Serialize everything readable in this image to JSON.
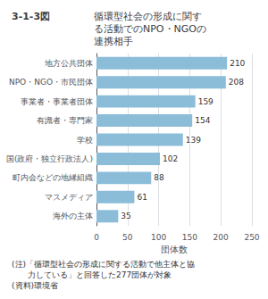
{
  "chart_data": {
    "type": "bar",
    "orientation": "horizontal",
    "title": "3-1-3図",
    "subtitle": "循環型社会の形成に関す\nる活動でのNPO・NGOの\n連携相手",
    "categories": [
      "海外の主体",
      "マスメディア",
      "町内会などの地縁組織",
      "国(政府・独立行政法人)",
      "学校",
      "有識者・専門家",
      "事業者・事業者団体",
      "NPO・NGO・市民団体",
      "地方公共団体"
    ],
    "values": [
      35,
      61,
      88,
      102,
      139,
      154,
      159,
      208,
      210
    ],
    "color": "#8bbdd9",
    "xlabel": "団体数",
    "xlim": [
      0,
      250
    ],
    "xticks": [
      0,
      50,
      100,
      150,
      200,
      250
    ],
    "grid": true,
    "data_labels": true,
    "annotations": [
      "(注)「循環型社会の形成に関する活動で他主体と協",
      "　　力している」と回答した277団体が対象",
      "(資料)環境省"
    ]
  }
}
